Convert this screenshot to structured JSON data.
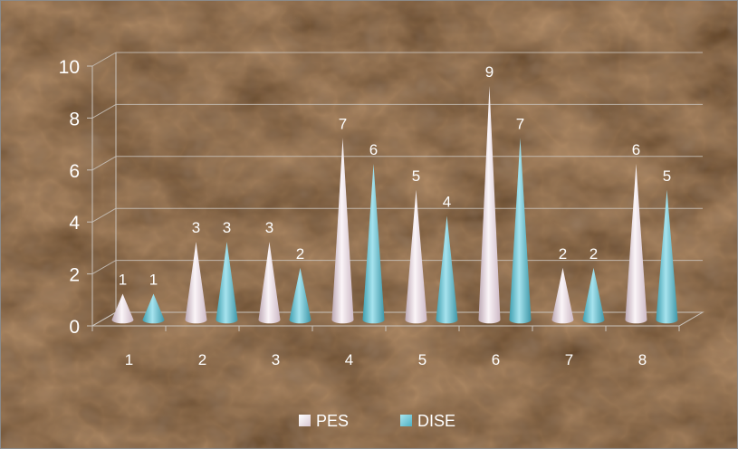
{
  "chart_data": {
    "type": "bar",
    "style": "3d-cone",
    "categories": [
      "1",
      "2",
      "3",
      "4",
      "5",
      "6",
      "7",
      "8"
    ],
    "series": [
      {
        "name": "PES",
        "values": [
          1,
          3,
          3,
          7,
          5,
          9,
          2,
          6
        ],
        "color": "#f2e4ec"
      },
      {
        "name": "DISE",
        "values": [
          1,
          3,
          2,
          6,
          4,
          7,
          2,
          5
        ],
        "color": "#5fbfcf"
      }
    ],
    "ylim": [
      0,
      10
    ],
    "y_ticks": [
      "0",
      "2",
      "4",
      "6",
      "8",
      "10"
    ],
    "grid": true,
    "legend_position": "bottom",
    "data_labels": true,
    "background": "dark brown marble texture"
  },
  "colors": {
    "background_dark": "#2a170c",
    "background_mid": "#5a3a22",
    "background_light": "#9a7a58",
    "text": "#ffffff",
    "grid": "#c9c3bc"
  }
}
